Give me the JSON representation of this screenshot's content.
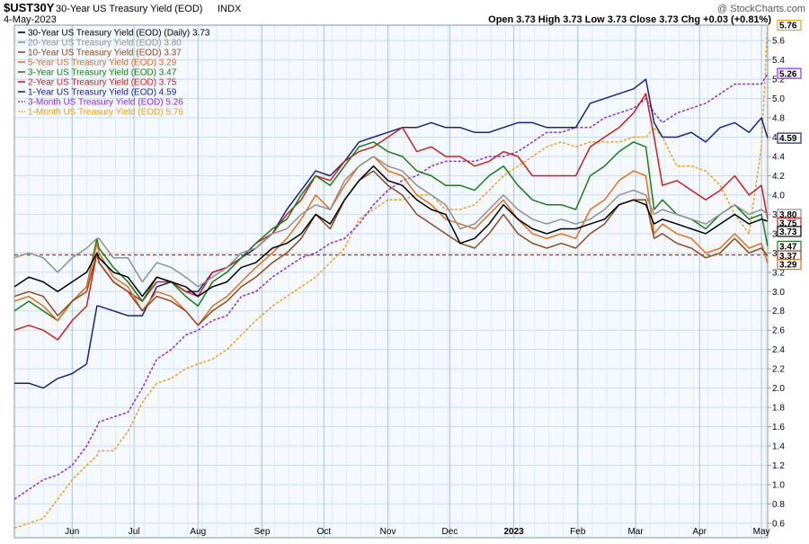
{
  "header": {
    "symbol": "$UST30Y",
    "name": "30-Year US Treasury Yield (EOD)",
    "exchange": "INDX",
    "date": "4-May-2023",
    "brand": "@ StockCharts.com",
    "ohlc": "Open 3.73  High 3.73  Low 3.73  Close 3.73  Chg +0.03 (+0.81%)",
    "ohlc_color": "#000000"
  },
  "chart_data": {
    "type": "line",
    "x": [
      "2022-05-04",
      "2022-05-11",
      "2022-05-18",
      "2022-05-25",
      "2022-06-01",
      "2022-06-08",
      "2022-06-13",
      "2022-06-14",
      "2022-06-21",
      "2022-06-28",
      "2022-07-05",
      "2022-07-12",
      "2022-07-19",
      "2022-07-26",
      "2022-08-01",
      "2022-08-08",
      "2022-08-15",
      "2022-08-22",
      "2022-08-29",
      "2022-09-06",
      "2022-09-13",
      "2022-09-20",
      "2022-09-27",
      "2022-10-04",
      "2022-10-11",
      "2022-10-18",
      "2022-10-25",
      "2022-11-01",
      "2022-11-08",
      "2022-11-15",
      "2022-11-22",
      "2022-11-29",
      "2022-12-06",
      "2022-12-13",
      "2022-12-20",
      "2022-12-27",
      "2023-01-03",
      "2023-01-10",
      "2023-01-17",
      "2023-01-24",
      "2023-01-31",
      "2023-02-07",
      "2023-02-14",
      "2023-02-21",
      "2023-02-28",
      "2023-03-06",
      "2023-03-10",
      "2023-03-14",
      "2023-03-21",
      "2023-03-28",
      "2023-04-04",
      "2023-04-11",
      "2023-04-18",
      "2023-04-25",
      "2023-05-01",
      "2023-05-04"
    ],
    "series": [
      {
        "name": "30-Year US Treasury Yield (EOD) (Daily) 3.73",
        "color": "#000000",
        "dash": "",
        "values": [
          3.05,
          3.15,
          3.1,
          3.0,
          3.1,
          3.2,
          3.4,
          3.35,
          3.2,
          3.15,
          2.95,
          3.15,
          3.1,
          3.05,
          2.95,
          3.05,
          3.1,
          3.25,
          3.3,
          3.45,
          3.5,
          3.6,
          3.8,
          3.7,
          3.95,
          4.15,
          4.3,
          4.15,
          4.1,
          3.95,
          3.85,
          3.8,
          3.5,
          3.55,
          3.7,
          3.9,
          3.75,
          3.65,
          3.6,
          3.65,
          3.65,
          3.7,
          3.75,
          3.9,
          3.95,
          3.9,
          3.7,
          3.75,
          3.7,
          3.65,
          3.6,
          3.7,
          3.8,
          3.7,
          3.75,
          3.73
        ],
        "label": "3.73"
      },
      {
        "name": "20-Year US Treasury Yield (EOD) 3.80",
        "color": "#909090",
        "dash": "",
        "values": [
          3.35,
          3.4,
          3.35,
          3.2,
          3.35,
          3.45,
          3.55,
          3.55,
          3.35,
          3.35,
          3.1,
          3.3,
          3.25,
          3.15,
          3.05,
          3.15,
          3.25,
          3.4,
          3.45,
          3.6,
          3.65,
          3.8,
          3.9,
          3.85,
          4.15,
          4.3,
          4.4,
          4.3,
          4.25,
          4.1,
          4.0,
          3.9,
          3.65,
          3.7,
          3.85,
          4.0,
          3.85,
          3.75,
          3.7,
          3.75,
          3.7,
          3.75,
          3.85,
          4.0,
          4.05,
          4.0,
          3.8,
          3.85,
          3.8,
          3.75,
          3.7,
          3.8,
          3.9,
          3.8,
          3.85,
          3.8
        ],
        "label": "3.80"
      },
      {
        "name": "10-Year US Treasury Yield (EOD) 3.37",
        "color": "#8b4a20",
        "dash": "",
        "values": [
          2.95,
          3.0,
          2.95,
          2.75,
          2.9,
          3.0,
          3.4,
          3.3,
          3.1,
          3.0,
          2.8,
          2.95,
          2.9,
          2.8,
          2.65,
          2.8,
          2.9,
          3.05,
          3.15,
          3.3,
          3.4,
          3.55,
          3.8,
          3.65,
          3.95,
          4.15,
          4.25,
          4.1,
          4.0,
          3.8,
          3.7,
          3.6,
          3.5,
          3.45,
          3.6,
          3.8,
          3.6,
          3.5,
          3.45,
          3.5,
          3.45,
          3.6,
          3.7,
          3.9,
          3.95,
          3.95,
          3.55,
          3.6,
          3.5,
          3.45,
          3.35,
          3.4,
          3.55,
          3.4,
          3.45,
          3.37
        ],
        "label": "3.37"
      },
      {
        "name": "5-Year US Treasury Yield (EOD) 3.29",
        "color": "#e07020",
        "dash": "",
        "values": [
          2.9,
          2.95,
          2.85,
          2.7,
          2.9,
          3.05,
          3.5,
          3.4,
          3.15,
          3.05,
          2.8,
          3.0,
          2.95,
          2.8,
          2.65,
          2.85,
          2.95,
          3.1,
          3.25,
          3.4,
          3.55,
          3.75,
          4.0,
          3.85,
          4.1,
          4.3,
          4.4,
          4.25,
          4.2,
          4.0,
          3.9,
          3.75,
          3.7,
          3.65,
          3.8,
          3.95,
          3.75,
          3.6,
          3.55,
          3.6,
          3.55,
          3.85,
          3.95,
          4.15,
          4.25,
          4.2,
          3.6,
          3.7,
          3.6,
          3.55,
          3.4,
          3.45,
          3.6,
          3.45,
          3.5,
          3.29
        ],
        "label": "3.29"
      },
      {
        "name": "3-Year US Treasury Yield (EOD) 3.47",
        "color": "#1a7a1a",
        "dash": "",
        "values": [
          2.8,
          2.9,
          2.8,
          2.7,
          2.9,
          3.05,
          3.55,
          3.45,
          3.25,
          3.1,
          2.9,
          3.15,
          3.1,
          2.95,
          2.85,
          3.1,
          3.2,
          3.35,
          3.5,
          3.65,
          3.75,
          4.0,
          4.2,
          4.1,
          4.3,
          4.5,
          4.55,
          4.45,
          4.4,
          4.25,
          4.2,
          4.1,
          4.1,
          4.05,
          4.2,
          4.3,
          4.1,
          3.95,
          3.9,
          3.9,
          3.85,
          4.2,
          4.3,
          4.45,
          4.55,
          4.5,
          3.85,
          3.95,
          3.8,
          3.75,
          3.65,
          3.8,
          3.9,
          3.75,
          3.8,
          3.47
        ],
        "label": "3.47"
      },
      {
        "name": "2-Year US Treasury Yield (EOD) 3.75",
        "color": "#cc1f1f",
        "dash": "",
        "values": [
          2.6,
          2.65,
          2.6,
          2.5,
          2.7,
          2.85,
          3.4,
          3.3,
          3.1,
          3.0,
          2.9,
          3.1,
          3.1,
          3.0,
          2.95,
          3.2,
          3.25,
          3.35,
          3.5,
          3.6,
          3.8,
          3.95,
          4.2,
          4.15,
          4.35,
          4.45,
          4.5,
          4.6,
          4.7,
          4.45,
          4.5,
          4.4,
          4.4,
          4.3,
          4.35,
          4.45,
          4.4,
          4.2,
          4.2,
          4.2,
          4.2,
          4.5,
          4.6,
          4.7,
          4.85,
          5.05,
          4.6,
          4.1,
          4.15,
          4.05,
          3.95,
          4.05,
          4.2,
          4.0,
          4.1,
          3.75
        ],
        "label": "3.75"
      },
      {
        "name": "1-Year US Treasury Yield (EOD) 4.59",
        "color": "#1a237e",
        "dash": "",
        "values": [
          2.05,
          2.05,
          2.0,
          2.1,
          2.15,
          2.25,
          2.85,
          2.85,
          2.8,
          2.75,
          2.75,
          3.05,
          3.1,
          3.0,
          3.0,
          3.2,
          3.25,
          3.35,
          3.45,
          3.6,
          3.85,
          4.05,
          4.25,
          4.2,
          4.35,
          4.55,
          4.6,
          4.65,
          4.7,
          4.7,
          4.75,
          4.7,
          4.7,
          4.65,
          4.65,
          4.7,
          4.75,
          4.75,
          4.7,
          4.7,
          4.7,
          4.95,
          5.0,
          5.05,
          5.1,
          5.2,
          4.75,
          4.6,
          4.6,
          4.65,
          4.55,
          4.7,
          4.75,
          4.65,
          4.8,
          4.59
        ],
        "label": "4.59"
      },
      {
        "name": "3-Month US Treasury Yield (EOD) 5.26",
        "color": "#8b2be2",
        "dash": "3,2",
        "values": [
          0.85,
          0.95,
          1.05,
          1.1,
          1.2,
          1.4,
          1.6,
          1.65,
          1.7,
          1.75,
          2.0,
          2.3,
          2.4,
          2.55,
          2.6,
          2.7,
          2.75,
          2.95,
          3.0,
          3.15,
          3.25,
          3.35,
          3.4,
          3.5,
          3.55,
          3.7,
          3.9,
          4.05,
          4.15,
          4.2,
          4.3,
          4.35,
          4.35,
          4.35,
          4.4,
          4.4,
          4.45,
          4.55,
          4.65,
          4.65,
          4.7,
          4.7,
          4.8,
          4.85,
          4.9,
          5.0,
          4.85,
          4.75,
          4.85,
          4.9,
          4.95,
          5.05,
          5.15,
          5.15,
          5.15,
          5.26
        ],
        "label": "5.26"
      },
      {
        "name": "1-Month US Treasury Yield (EOD) 5.76",
        "color": "#e8a020",
        "dash": "3,2",
        "values": [
          0.55,
          0.6,
          0.65,
          0.85,
          1.05,
          1.2,
          1.3,
          1.35,
          1.35,
          1.55,
          1.85,
          2.05,
          2.1,
          2.2,
          2.25,
          2.3,
          2.4,
          2.55,
          2.7,
          2.85,
          2.95,
          3.05,
          3.15,
          3.3,
          3.45,
          3.75,
          3.85,
          3.95,
          3.95,
          4.0,
          4.0,
          3.85,
          3.85,
          3.9,
          4.05,
          4.2,
          4.3,
          4.4,
          4.5,
          4.55,
          4.5,
          4.55,
          4.55,
          4.55,
          4.6,
          4.6,
          4.7,
          4.6,
          4.3,
          4.3,
          4.25,
          4.1,
          3.8,
          3.6,
          4.5,
          5.76
        ],
        "label": "5.76"
      }
    ],
    "x_tick_labels": [
      "Jun",
      "Jul",
      "Aug",
      "Sep",
      "Oct",
      "Nov",
      "Dec",
      "2023",
      "Feb",
      "Mar",
      "Apr",
      "May"
    ],
    "y_ticks": [
      0.6,
      0.8,
      1.0,
      1.2,
      1.4,
      1.6,
      1.8,
      2.0,
      2.2,
      2.4,
      2.6,
      2.8,
      3.0,
      3.2,
      3.4,
      3.6,
      3.8,
      4.0,
      4.2,
      4.4,
      4.6,
      4.8,
      5.0,
      5.2,
      5.4,
      5.6
    ],
    "ylim": [
      0.45,
      5.76
    ],
    "reference_line": {
      "value": 3.38,
      "color": "#cc1f1f"
    },
    "grid": true,
    "legend_placement": "top-left"
  }
}
